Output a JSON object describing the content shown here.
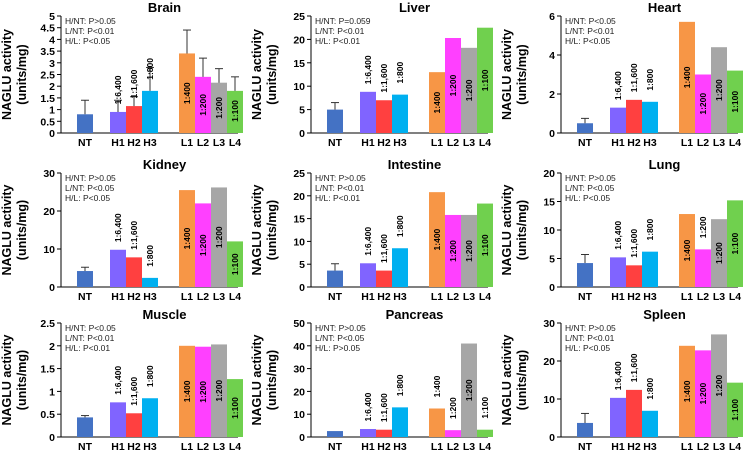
{
  "colors": {
    "NT": "#4472C4",
    "H1": "#8064FF",
    "H2": "#FF4040",
    "H3": "#00B0F0",
    "L1": "#F79646",
    "L2": "#FF40FF",
    "L3": "#A6A6A6",
    "L4": "#70D04E"
  },
  "ylabel": [
    "NAGLU activity",
    "(units/mg)"
  ],
  "chart_data": [
    {
      "type": "bar",
      "title": "Brain",
      "categories": [
        "NT",
        "H1",
        "H2",
        "H3",
        "L1",
        "L2",
        "L3",
        "L4"
      ],
      "values": [
        0.8,
        0.9,
        1.15,
        1.8,
        3.4,
        2.4,
        2.15,
        1.8
      ],
      "errors": [
        0.6,
        0.5,
        0.4,
        1.0,
        1.0,
        0.8,
        0.6,
        0.6
      ],
      "ylim": [
        0,
        5
      ],
      "ticks": [
        0,
        0.5,
        1,
        1.5,
        2,
        2.5,
        3,
        3.5,
        4,
        4.5,
        5
      ],
      "stats": [
        "H/NT: P>0.05",
        "L/NT: P<0.01",
        "H/L: P<0.05"
      ],
      "dilutions": [
        "",
        "1:6,400",
        "1:1,600",
        "1:800",
        "1:400",
        "1:200",
        "1:200",
        "1:100"
      ]
    },
    {
      "type": "bar",
      "title": "Liver",
      "categories": [
        "NT",
        "H1",
        "H2",
        "H3",
        "L1",
        "L2",
        "L3",
        "L4"
      ],
      "values": [
        5,
        8.8,
        7,
        8.2,
        13,
        20.3,
        18.2,
        22.5
      ],
      "errors": [
        1.5,
        0,
        0,
        0,
        0,
        0,
        0,
        0
      ],
      "ylim": [
        0,
        25
      ],
      "ticks": [
        0,
        5,
        10,
        15,
        20,
        25
      ],
      "stats": [
        "H/NT: P=0.059",
        "L/NT: P<0.01",
        "H/L: P<0.01"
      ],
      "dilutions": [
        "",
        "1:6,400",
        "1:1,600",
        "1:800",
        "1:400",
        "1:200",
        "1:200",
        "1:100"
      ]
    },
    {
      "type": "bar",
      "title": "Heart",
      "categories": [
        "NT",
        "H1",
        "H2",
        "H3",
        "L1",
        "L2",
        "L3",
        "L4"
      ],
      "values": [
        0.5,
        1.3,
        1.7,
        1.6,
        5.7,
        3.0,
        4.4,
        3.2
      ],
      "errors": [
        0.25,
        0,
        0,
        0,
        0,
        0,
        0,
        0
      ],
      "ylim": [
        0,
        6
      ],
      "ticks": [
        0,
        2,
        4,
        6
      ],
      "stats": [
        "H/NT: P<0.05",
        "L/NT: P<0.01",
        "H/L: P<0.05"
      ],
      "dilutions": [
        "",
        "1:6,400",
        "1:1,600",
        "1:800",
        "1:400",
        "1:200",
        "1:200",
        "1:100"
      ]
    },
    {
      "type": "bar",
      "title": "Kidney",
      "categories": [
        "NT",
        "H1",
        "H2",
        "H3",
        "L1",
        "L2",
        "L3",
        "L4"
      ],
      "values": [
        4.2,
        9.8,
        7.8,
        2.4,
        25.5,
        22,
        26.2,
        12
      ],
      "errors": [
        1.0,
        0,
        0,
        0,
        0,
        0,
        0,
        0
      ],
      "ylim": [
        0,
        30
      ],
      "ticks": [
        0,
        10,
        20,
        30
      ],
      "stats": [
        "H/NT: P>0.05",
        "L/NT: P<0.05",
        "H/L: P<0.05"
      ],
      "dilutions": [
        "",
        "1:6,400",
        "1:1,600",
        "1:800",
        "1:400",
        "1:200",
        "1:200",
        "1:100"
      ]
    },
    {
      "type": "bar",
      "title": "Intestine",
      "categories": [
        "NT",
        "H1",
        "H2",
        "H3",
        "L1",
        "L2",
        "L3",
        "L4"
      ],
      "values": [
        3.6,
        5.2,
        3.6,
        8.5,
        20.8,
        15.8,
        15.8,
        18.3
      ],
      "errors": [
        1.5,
        0,
        0,
        0,
        0,
        0,
        0,
        0
      ],
      "ylim": [
        0,
        25
      ],
      "ticks": [
        0,
        5,
        10,
        15,
        20,
        25
      ],
      "stats": [
        "H/NT: P>0.05",
        "L/NT: P<0.01",
        "H/L: P<0.01"
      ],
      "dilutions": [
        "",
        "1:6,400",
        "1:1,600",
        "1:800",
        "1:400",
        "1:200",
        "1:200",
        "1:100"
      ]
    },
    {
      "type": "bar",
      "title": "Lung",
      "categories": [
        "NT",
        "H1",
        "H2",
        "H3",
        "L1",
        "L2",
        "L3",
        "L4"
      ],
      "values": [
        4.2,
        5.2,
        3.8,
        6.2,
        12.8,
        6.6,
        11.9,
        15.2
      ],
      "errors": [
        1.5,
        0,
        0,
        0,
        0,
        0,
        0,
        0
      ],
      "ylim": [
        0,
        20
      ],
      "ticks": [
        0,
        5,
        10,
        15,
        20
      ],
      "stats": [
        "H/NT: P>0.05",
        "L/NT: P<0.05",
        "H/L: P<0.05"
      ],
      "dilutions": [
        "",
        "1:6,400",
        "1:1,600",
        "1:800",
        "1:400",
        "1:200",
        "1:200",
        "1:100"
      ]
    },
    {
      "type": "bar",
      "title": "Muscle",
      "categories": [
        "NT",
        "H1",
        "H2",
        "H3",
        "L1",
        "L2",
        "L3",
        "L4"
      ],
      "values": [
        0.43,
        0.76,
        0.52,
        0.85,
        2.0,
        1.98,
        2.03,
        1.27
      ],
      "errors": [
        0.04,
        0,
        0,
        0,
        0,
        0,
        0,
        0
      ],
      "ylim": [
        0,
        2.5
      ],
      "ticks": [
        0,
        0.5,
        1,
        1.5,
        2,
        2.5
      ],
      "stats": [
        "H/NT: P<0.05",
        "L/NT: P<0.01",
        "H/L: P<0.01"
      ],
      "dilutions": [
        "",
        "1:6,400",
        "1:1,600",
        "1:800",
        "1:400",
        "1:200",
        "1:200",
        "1:100"
      ]
    },
    {
      "type": "bar",
      "title": "Pancreas",
      "categories": [
        "NT",
        "H1",
        "H2",
        "H3",
        "L1",
        "L2",
        "L3",
        "L4"
      ],
      "values": [
        2.6,
        3.5,
        3.2,
        13,
        12.5,
        3,
        41,
        3.2
      ],
      "errors": [
        0,
        0,
        0,
        0,
        0,
        0,
        0,
        0
      ],
      "ylim": [
        0,
        50
      ],
      "ticks": [
        0,
        10,
        20,
        30,
        40,
        50
      ],
      "stats": [
        "H/NT: P>0.05",
        "L/NT: P<0.05",
        "H/L: P>0.05"
      ],
      "dilutions": [
        "",
        "1:6,400",
        "1:1,600",
        "1:800",
        "1:400",
        "1:200",
        "1:200",
        "1:100"
      ]
    },
    {
      "type": "bar",
      "title": "Spleen",
      "categories": [
        "NT",
        "H1",
        "H2",
        "H3",
        "L1",
        "L2",
        "L3",
        "L4"
      ],
      "values": [
        3.7,
        10.3,
        12.4,
        6.9,
        24,
        22.8,
        27,
        14.3
      ],
      "errors": [
        2.5,
        0,
        0,
        0,
        0,
        0,
        0,
        0
      ],
      "ylim": [
        0,
        30
      ],
      "ticks": [
        0,
        10,
        20,
        30
      ],
      "stats": [
        "H/NT: P>0.05",
        "L/NT: P<0.01",
        "H/L: P<0.05"
      ],
      "dilutions": [
        "",
        "1:6,400",
        "1:1,600",
        "1:800",
        "1:400",
        "1:200",
        "1:200",
        "1:100"
      ]
    }
  ]
}
